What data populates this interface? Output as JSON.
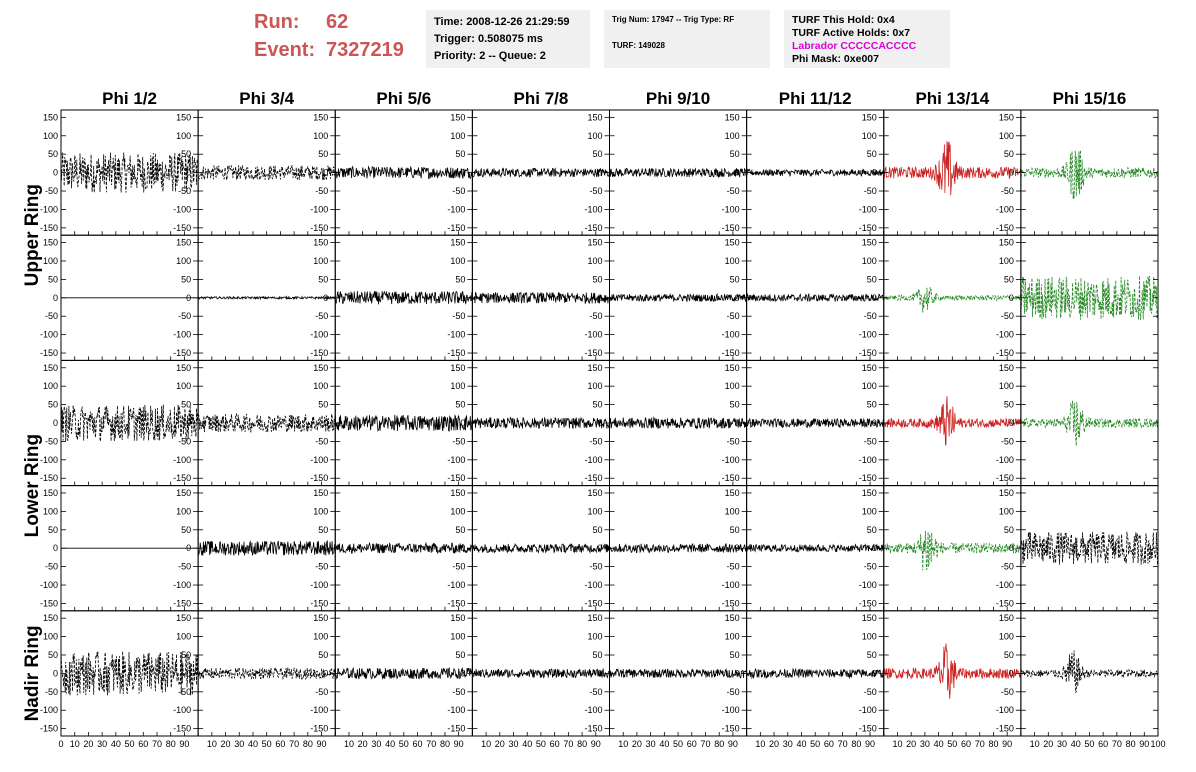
{
  "header": {
    "run_label": "Run:",
    "run_value": "62",
    "event_label": "Event:",
    "event_value": "7327219",
    "time": "Time: 2008-12-26 21:29:59",
    "trigger": "Trigger: 0.508075 ms",
    "priority": "Priority: 2 -- Queue: 2",
    "trig_num": "Trig Num: 17947 -- Trig Type: RF",
    "turf": "TURF: 149028",
    "turf_this_hold": "TURF This Hold: 0x4",
    "turf_active_holds": "TURF Active Holds: 0x7",
    "labrador": "Labrador CCCCCACCCC",
    "phi_mask": "Phi Mask: 0xe007"
  },
  "chart_data": {
    "type": "line",
    "phi_sectors": [
      "Phi 1/2",
      "Phi 3/4",
      "Phi 5/6",
      "Phi 7/8",
      "Phi 9/10",
      "Phi 11/12",
      "Phi 13/14",
      "Phi 15/16"
    ],
    "rows": [
      "upper-1",
      "upper-2",
      "lower-1",
      "lower-2",
      "nadir"
    ],
    "ring_labels": [
      {
        "text": "Upper Ring",
        "rows": [
          0,
          1
        ]
      },
      {
        "text": "Lower Ring",
        "rows": [
          2,
          3
        ]
      },
      {
        "text": "Nadir Ring",
        "rows": [
          4,
          4
        ]
      }
    ],
    "xlim": [
      0,
      100
    ],
    "ylim": [
      -170,
      170
    ],
    "y_ticks": [
      -150,
      -100,
      -50,
      0,
      50,
      100,
      150
    ],
    "x_tick_labels": [
      "0",
      "10",
      "20",
      "30",
      "40",
      "50",
      "60",
      "70",
      "80",
      "90",
      "100"
    ],
    "colors": {
      "normal": "#000000",
      "triggered": "#cc2222",
      "dashed_pol": "#228822"
    },
    "panels": [
      [
        {
          "style": "dashed",
          "color": "normal",
          "amp": 55
        },
        {
          "style": "dashed",
          "color": "normal",
          "amp": 20
        },
        {
          "style": "solid",
          "color": "normal",
          "amp": 16
        },
        {
          "style": "solid",
          "color": "normal",
          "amp": 12
        },
        {
          "style": "solid",
          "color": "normal",
          "amp": 12
        },
        {
          "style": "solid",
          "color": "normal",
          "amp": 9
        },
        {
          "style": "solid",
          "color": "triggered",
          "amp": 45,
          "burst": 46
        },
        {
          "style": "dashed",
          "color": "dashed_pol",
          "amp": 40,
          "burst": 40
        }
      ],
      [
        {
          "style": "flat",
          "color": "normal",
          "amp": 0
        },
        {
          "style": "solid",
          "color": "normal",
          "amp": 3
        },
        {
          "style": "solid",
          "color": "normal",
          "amp": 18
        },
        {
          "style": "solid",
          "color": "normal",
          "amp": 15
        },
        {
          "style": "solid",
          "color": "normal",
          "amp": 10
        },
        {
          "style": "solid",
          "color": "normal",
          "amp": 10
        },
        {
          "style": "dashed",
          "color": "dashed_pol",
          "amp": 20,
          "burst": 30
        },
        {
          "style": "dashed",
          "color": "dashed_pol",
          "amp": 60
        }
      ],
      [
        {
          "style": "dashed",
          "color": "normal",
          "amp": 50
        },
        {
          "style": "dashed",
          "color": "normal",
          "amp": 25
        },
        {
          "style": "solid",
          "color": "normal",
          "amp": 22
        },
        {
          "style": "solid",
          "color": "normal",
          "amp": 15
        },
        {
          "style": "solid",
          "color": "normal",
          "amp": 15
        },
        {
          "style": "solid",
          "color": "normal",
          "amp": 12
        },
        {
          "style": "solid",
          "color": "triggered",
          "amp": 35,
          "burst": 46
        },
        {
          "style": "dashed",
          "color": "dashed_pol",
          "amp": 35,
          "burst": 40
        }
      ],
      [
        {
          "style": "flat",
          "color": "normal",
          "amp": 0
        },
        {
          "style": "solid",
          "color": "normal",
          "amp": 20
        },
        {
          "style": "solid",
          "color": "normal",
          "amp": 14
        },
        {
          "style": "solid",
          "color": "normal",
          "amp": 12
        },
        {
          "style": "solid",
          "color": "normal",
          "amp": 12
        },
        {
          "style": "solid",
          "color": "normal",
          "amp": 10
        },
        {
          "style": "dashed",
          "color": "dashed_pol",
          "amp": 40,
          "burst": 32
        },
        {
          "style": "dashed",
          "color": "normal",
          "amp": 45
        }
      ],
      [
        {
          "style": "dashed",
          "color": "normal",
          "amp": 60
        },
        {
          "style": "dashed",
          "color": "normal",
          "amp": 15
        },
        {
          "style": "solid",
          "color": "normal",
          "amp": 15
        },
        {
          "style": "solid",
          "color": "normal",
          "amp": 12
        },
        {
          "style": "solid",
          "color": "normal",
          "amp": 12
        },
        {
          "style": "solid",
          "color": "normal",
          "amp": 12
        },
        {
          "style": "solid",
          "color": "triggered",
          "amp": 40,
          "burst": 46
        },
        {
          "style": "dashed",
          "color": "normal",
          "amp": 30,
          "burst": 38
        }
      ]
    ]
  }
}
